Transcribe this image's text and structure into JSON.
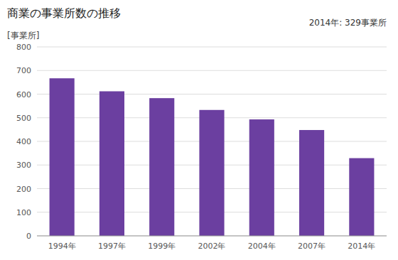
{
  "chart_data": {
    "type": "bar",
    "title": "商業の事業所数の推移",
    "ylabel": "[事業所]",
    "annotations": [
      "2014年: 329事業所"
    ],
    "categories": [
      "1994年",
      "1997年",
      "1999年",
      "2002年",
      "2004年",
      "2007年",
      "2014年"
    ],
    "values": [
      667,
      612,
      583,
      533,
      493,
      448,
      329
    ],
    "color": "#6B3FA0",
    "ylim": [
      0,
      800
    ],
    "yticks": [
      0,
      100,
      200,
      300,
      400,
      500,
      600,
      700,
      800
    ],
    "grid": true
  }
}
